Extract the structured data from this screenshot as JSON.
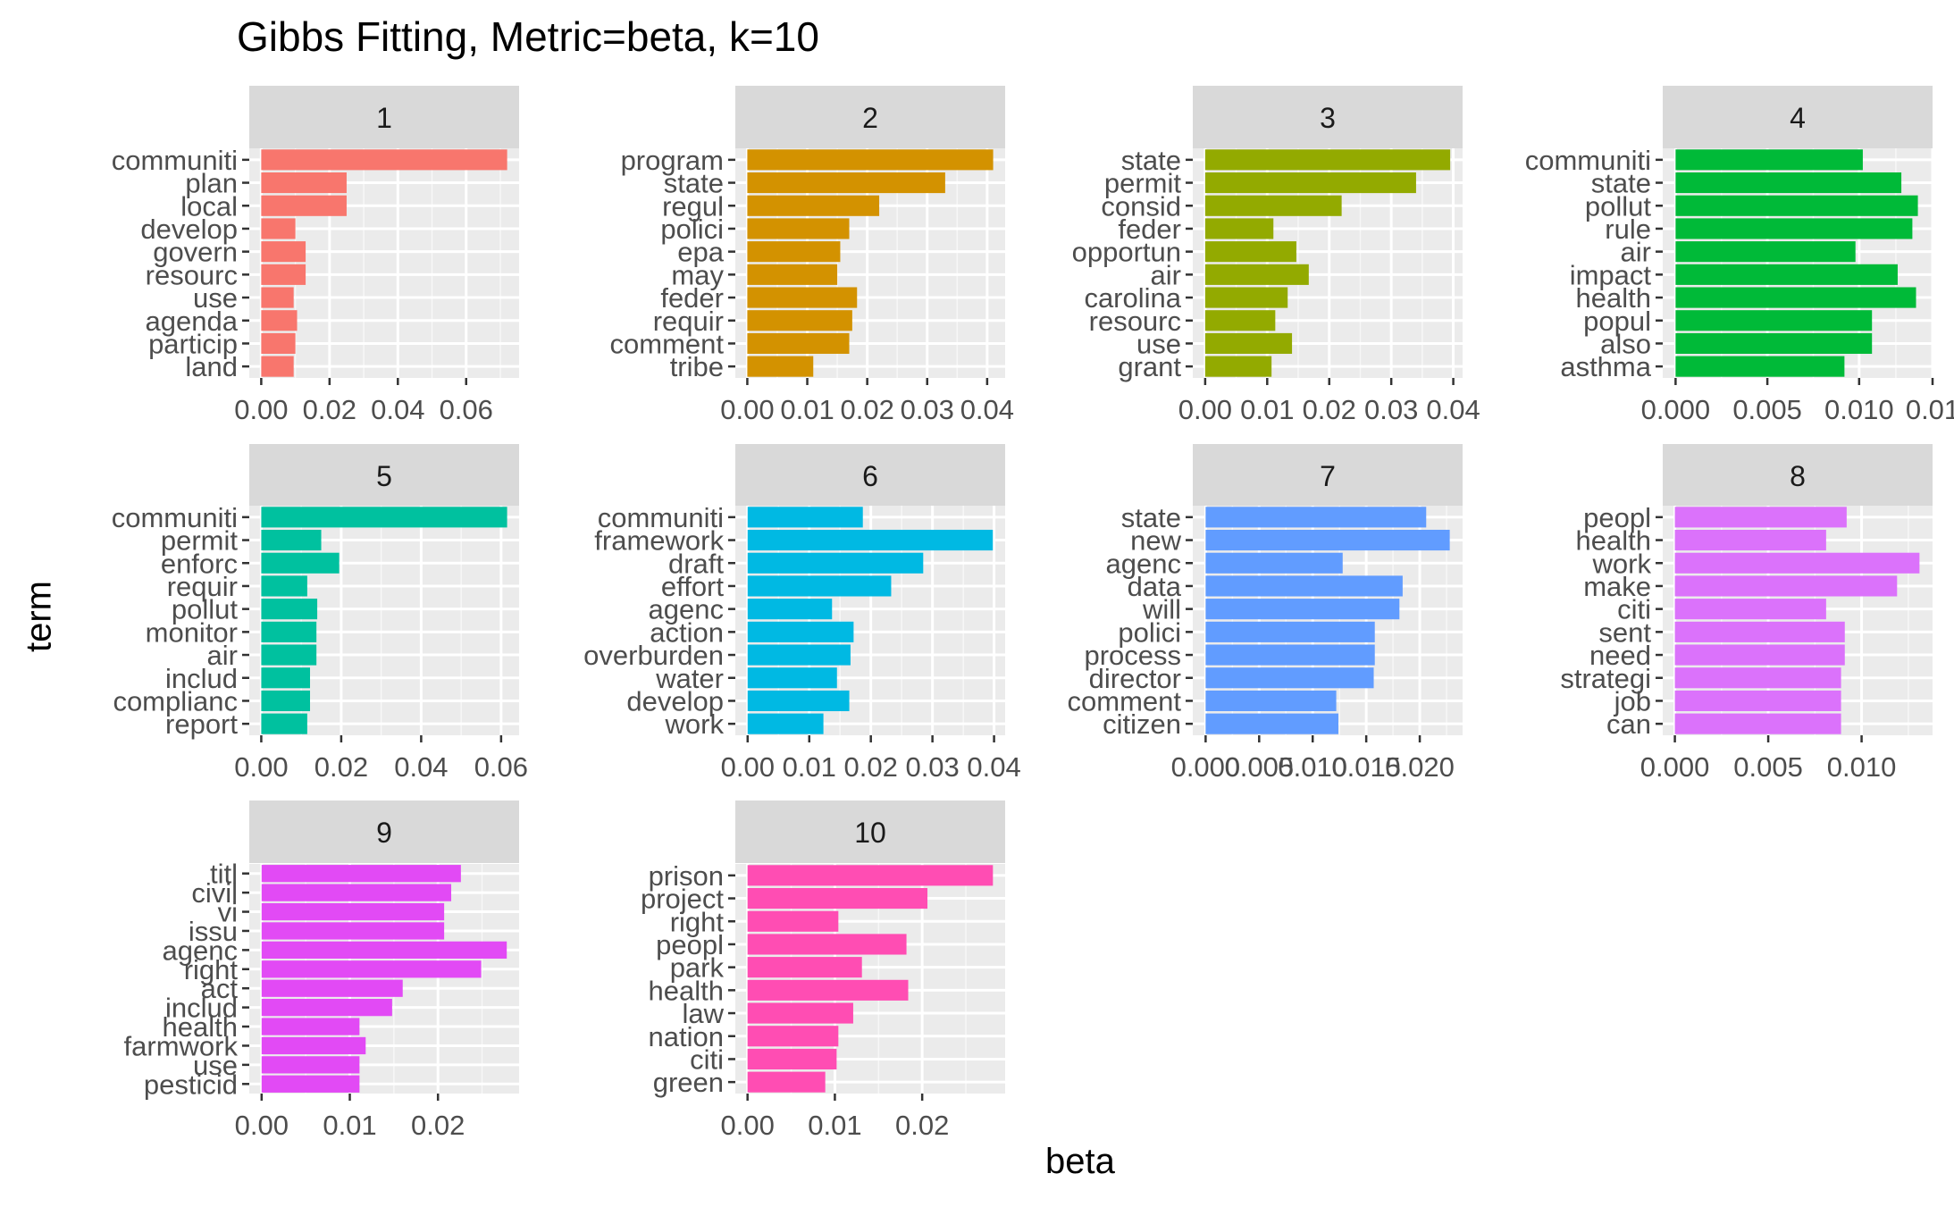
{
  "chart_data": {
    "type": "bar",
    "orientation": "horizontal",
    "title": "Gibbs Fitting, Metric=beta, k=10",
    "xlabel": "beta",
    "ylabel": "term",
    "facet_label": "facet",
    "grid": true,
    "facets": [
      {
        "label": "1",
        "color": "#F8766D",
        "terms": [
          "communiti",
          "plan",
          "local",
          "develop",
          "govern",
          "resourc",
          "use",
          "agenda",
          "particip",
          "land"
        ],
        "values": [
          0.072,
          0.025,
          0.025,
          0.01,
          0.013,
          0.013,
          0.0095,
          0.0105,
          0.01,
          0.0095
        ],
        "xlim": [
          -0.0035,
          0.0755
        ],
        "ticks": [
          0,
          0.02,
          0.04,
          0.06
        ],
        "tick_labels": [
          "0.00",
          "0.02",
          "0.04",
          "0.06"
        ]
      },
      {
        "label": "2",
        "color": "#D39200",
        "terms": [
          "program",
          "state",
          "regul",
          "polici",
          "epa",
          "may",
          "feder",
          "requir",
          "comment",
          "tribe"
        ],
        "values": [
          0.041,
          0.033,
          0.022,
          0.017,
          0.0155,
          0.015,
          0.0183,
          0.0175,
          0.017,
          0.011
        ],
        "xlim": [
          -0.002,
          0.043
        ],
        "ticks": [
          0,
          0.01,
          0.02,
          0.03,
          0.04
        ],
        "tick_labels": [
          "0.00",
          "0.01",
          "0.02",
          "0.03",
          "0.04"
        ]
      },
      {
        "label": "3",
        "color": "#93AA00",
        "terms": [
          "state",
          "permit",
          "consid",
          "feder",
          "opportun",
          "air",
          "carolina",
          "resourc",
          "use",
          "grant"
        ],
        "values": [
          0.0395,
          0.034,
          0.022,
          0.011,
          0.0147,
          0.0167,
          0.0133,
          0.0113,
          0.014,
          0.0107
        ],
        "xlim": [
          -0.002,
          0.0415
        ],
        "ticks": [
          0,
          0.01,
          0.02,
          0.03,
          0.04
        ],
        "tick_labels": [
          "0.00",
          "0.01",
          "0.02",
          "0.03",
          "0.04"
        ]
      },
      {
        "label": "4",
        "color": "#00BA38",
        "terms": [
          "communiti",
          "state",
          "pollut",
          "rule",
          "air",
          "impact",
          "health",
          "popul",
          "also",
          "asthma"
        ],
        "values": [
          0.0102,
          0.0123,
          0.0132,
          0.0129,
          0.0098,
          0.0121,
          0.0131,
          0.0107,
          0.0107,
          0.0092
        ],
        "xlim": [
          -0.0007,
          0.014
        ],
        "ticks": [
          0,
          0.005,
          0.01,
          0.014
        ],
        "tick_labels": [
          "0.000",
          "0.005",
          "0.010",
          "0.01"
        ]
      },
      {
        "label": "5",
        "color": "#00C19F",
        "terms": [
          "communiti",
          "permit",
          "enforc",
          "requir",
          "pollut",
          "monitor",
          "air",
          "includ",
          "complianc",
          "report"
        ],
        "values": [
          0.0615,
          0.015,
          0.0195,
          0.0115,
          0.014,
          0.0138,
          0.0138,
          0.0122,
          0.0122,
          0.0115
        ],
        "xlim": [
          -0.003,
          0.0645
        ],
        "ticks": [
          0,
          0.02,
          0.04,
          0.06
        ],
        "tick_labels": [
          "0.00",
          "0.02",
          "0.04",
          "0.06"
        ]
      },
      {
        "label": "6",
        "color": "#00B9E3",
        "terms": [
          "communiti",
          "framework",
          "draft",
          "effort",
          "agenc",
          "action",
          "overburden",
          "water",
          "develop",
          "work"
        ],
        "values": [
          0.0187,
          0.0398,
          0.0285,
          0.0233,
          0.0137,
          0.0172,
          0.0167,
          0.0145,
          0.0165,
          0.0123
        ],
        "xlim": [
          -0.002,
          0.0418
        ],
        "ticks": [
          0,
          0.01,
          0.02,
          0.03,
          0.04
        ],
        "tick_labels": [
          "0.00",
          "0.01",
          "0.02",
          "0.03",
          "0.04"
        ]
      },
      {
        "label": "7",
        "color": "#619CFF",
        "terms": [
          "state",
          "new",
          "agenc",
          "data",
          "will",
          "polici",
          "process",
          "director",
          "comment",
          "citizen"
        ],
        "values": [
          0.0206,
          0.0228,
          0.0128,
          0.0184,
          0.0181,
          0.0158,
          0.0158,
          0.0157,
          0.0122,
          0.0124
        ],
        "xlim": [
          -0.0012,
          0.024
        ],
        "ticks": [
          0,
          0.005,
          0.01,
          0.015,
          0.02
        ],
        "tick_labels": [
          "0.000",
          "0.005",
          "0.010",
          "0.015",
          "0.020"
        ]
      },
      {
        "label": "8",
        "color": "#DB72FB",
        "terms": [
          "peopl",
          "health",
          "work",
          "make",
          "citi",
          "sent",
          "need",
          "strategi",
          "job",
          "can"
        ],
        "values": [
          0.0092,
          0.0081,
          0.0131,
          0.0119,
          0.0081,
          0.0091,
          0.0091,
          0.0089,
          0.0089,
          0.0089
        ],
        "xlim": [
          -0.00065,
          0.0138
        ],
        "ticks": [
          0,
          0.005,
          0.01
        ],
        "tick_labels": [
          "0.000",
          "0.005",
          "0.010"
        ]
      },
      {
        "label": "9",
        "color": "#E24AF5",
        "terms": [
          "titl",
          "civil",
          "vi",
          "issu",
          "agenc",
          "right",
          "act",
          "includ",
          "health",
          "farmwork",
          "use",
          "pesticid"
        ],
        "values": [
          0.0226,
          0.0215,
          0.0207,
          0.0207,
          0.0278,
          0.0249,
          0.016,
          0.0148,
          0.0111,
          0.0118,
          0.0111,
          0.0111
        ],
        "xlim": [
          -0.0014,
          0.0292
        ],
        "ticks": [
          0,
          0.01,
          0.02
        ],
        "tick_labels": [
          "0.00",
          "0.01",
          "0.02"
        ]
      },
      {
        "label": "10",
        "color": "#FF4DB3",
        "terms": [
          "prison",
          "project",
          "right",
          "peopl",
          "park",
          "health",
          "law",
          "nation",
          "citi",
          "green"
        ],
        "values": [
          0.0281,
          0.0206,
          0.0104,
          0.0182,
          0.0131,
          0.0184,
          0.0121,
          0.0104,
          0.0102,
          0.0089
        ],
        "xlim": [
          -0.0014,
          0.0295
        ],
        "ticks": [
          0,
          0.01,
          0.02
        ],
        "tick_labels": [
          "0.00",
          "0.01",
          "0.02"
        ]
      }
    ]
  }
}
